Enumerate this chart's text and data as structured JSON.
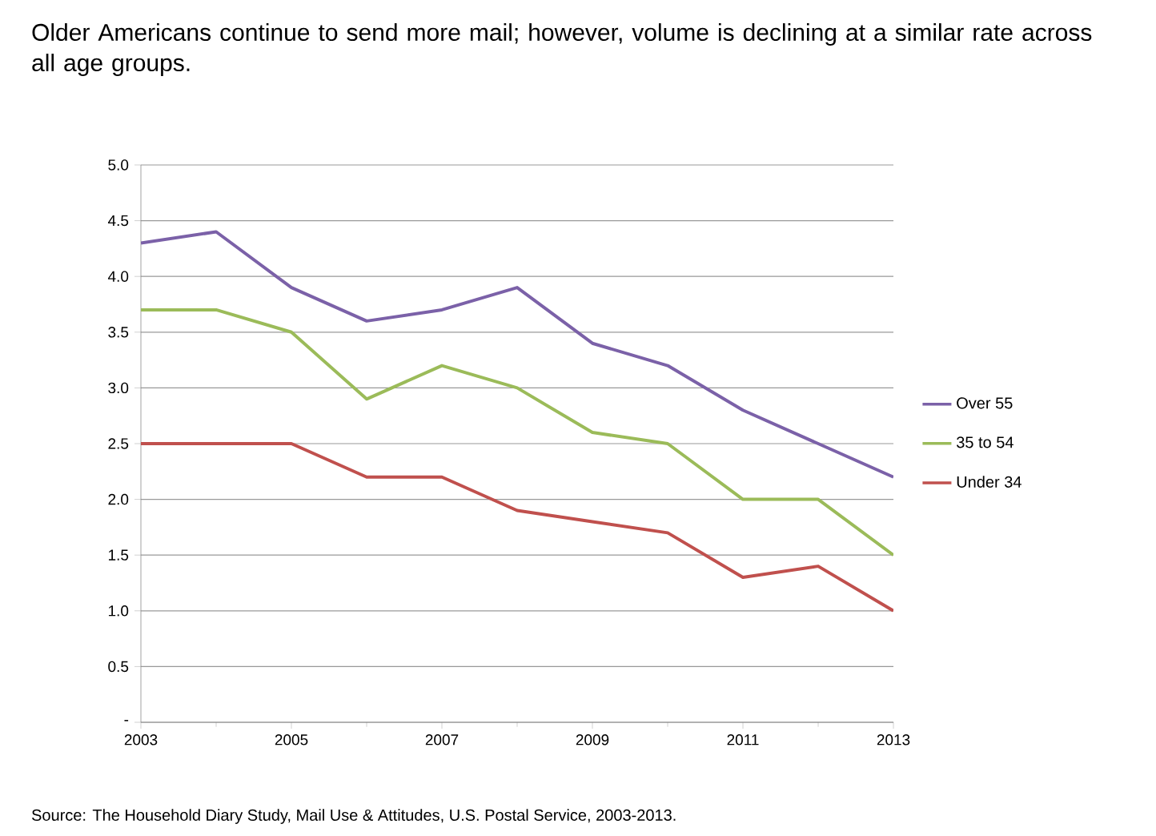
{
  "chart_data": {
    "type": "line",
    "title": "Older Americans continue to send more mail; however, volume is declining at a similar rate across all age groups.",
    "x": [
      2003,
      2004,
      2005,
      2006,
      2007,
      2008,
      2009,
      2010,
      2011,
      2012,
      2013
    ],
    "series": [
      {
        "name": "Over 55",
        "color": "#7b61a8",
        "values": [
          4.3,
          4.4,
          3.9,
          3.6,
          3.7,
          3.9,
          3.4,
          3.2,
          2.8,
          2.5,
          2.2
        ]
      },
      {
        "name": "35 to 54",
        "color": "#9bbb59",
        "values": [
          3.7,
          3.7,
          3.5,
          2.9,
          3.2,
          3.0,
          2.6,
          2.5,
          2.0,
          2.0,
          1.5
        ]
      },
      {
        "name": "Under 34",
        "color": "#c0504d",
        "values": [
          2.5,
          2.5,
          2.5,
          2.2,
          2.2,
          1.9,
          1.8,
          1.7,
          1.3,
          1.4,
          1.0
        ]
      }
    ],
    "xlim": [
      2003,
      2013
    ],
    "xticks": [
      2003,
      2005,
      2007,
      2009,
      2011,
      2013
    ],
    "ylim": [
      0,
      5
    ],
    "yticks": [
      {
        "value": 0,
        "label": "-"
      },
      {
        "value": 0.5,
        "label": "0.5"
      },
      {
        "value": 1,
        "label": "1.0"
      },
      {
        "value": 1.5,
        "label": "1.5"
      },
      {
        "value": 2,
        "label": "2.0"
      },
      {
        "value": 2.5,
        "label": "2.5"
      },
      {
        "value": 3,
        "label": "3.0"
      },
      {
        "value": 3.5,
        "label": "3.5"
      },
      {
        "value": 4,
        "label": "4.0"
      },
      {
        "value": 4.5,
        "label": "4.5"
      },
      {
        "value": 5,
        "label": "5.0"
      }
    ],
    "grid": "y",
    "legend": "right",
    "marker": "none",
    "line_style": "solid",
    "annotations": [
      "Source: The Household Diary Study, Mail Use & Attitudes, U.S. Postal Service, 2003-2013."
    ]
  }
}
